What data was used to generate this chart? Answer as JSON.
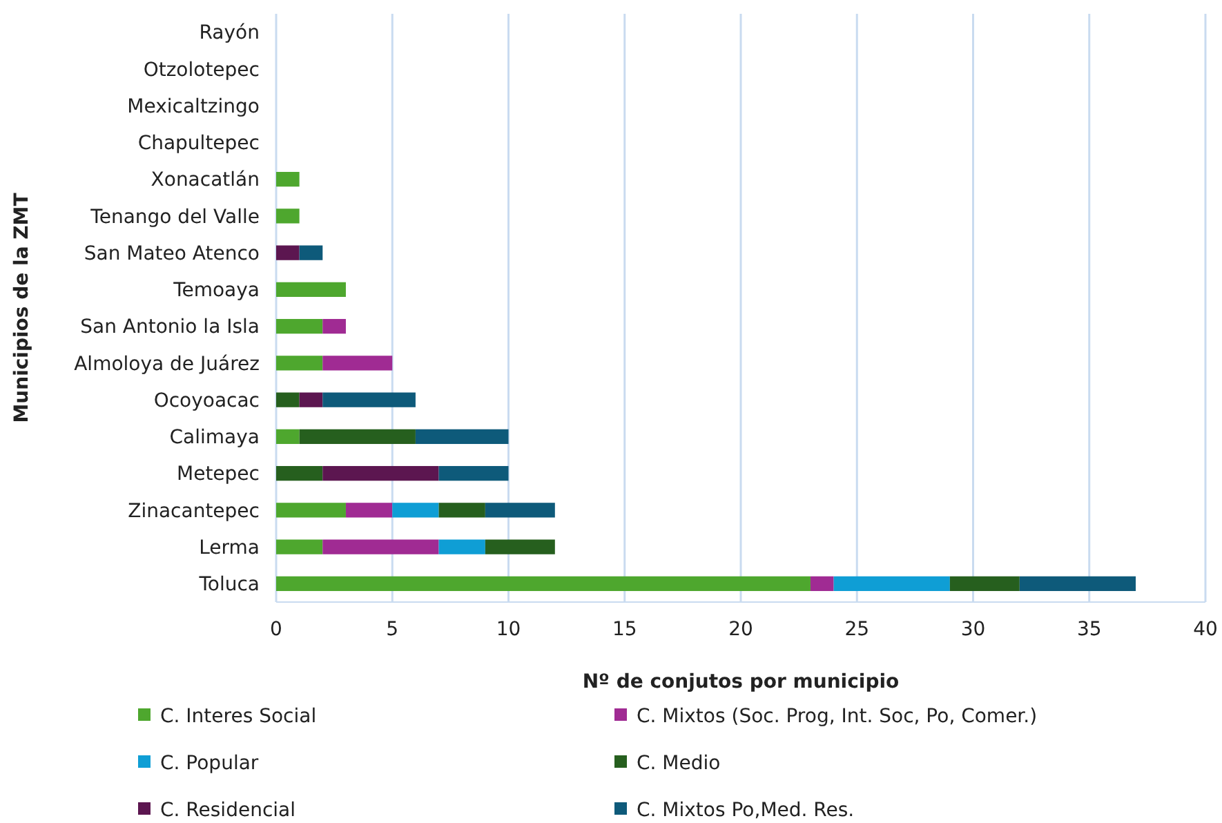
{
  "chart_data": {
    "type": "bar",
    "orientation": "horizontal",
    "stacked": true,
    "xlabel": "Nº de conjutos por municipio",
    "ylabel": "Municipios de la ZMT",
    "categories": [
      "Rayón",
      "Otzolotepec",
      "Mexicaltzingo",
      "Chapultepec",
      "Xonacatlán",
      "Tenango del Valle",
      "San Mateo Atenco",
      "Temoaya",
      "San Antonio la Isla",
      "Almoloya de Juárez",
      "Ocoyoacac",
      "Calimaya",
      "Metepec",
      "Zinacantepec",
      "Lerma",
      "Toluca"
    ],
    "series": [
      {
        "name": "C. Interes Social",
        "color": "#4ea72e",
        "values": [
          0,
          0,
          0,
          0,
          1,
          1,
          0,
          3,
          2,
          2,
          0,
          1,
          0,
          3,
          2,
          23
        ]
      },
      {
        "name": "C. Mixtos (Soc. Prog, Int. Soc, Po, Comer.)",
        "color": "#a02b93",
        "values": [
          0,
          0,
          0,
          0,
          0,
          0,
          0,
          0,
          1,
          3,
          0,
          0,
          0,
          2,
          5,
          1
        ]
      },
      {
        "name": "C. Popular",
        "color": "#0f9ed5",
        "values": [
          0,
          0,
          0,
          0,
          0,
          0,
          0,
          0,
          0,
          0,
          0,
          0,
          0,
          2,
          2,
          5
        ]
      },
      {
        "name": "C. Medio",
        "color": "#265f1e",
        "values": [
          0,
          0,
          0,
          0,
          0,
          0,
          0,
          0,
          0,
          0,
          1,
          5,
          2,
          2,
          3,
          3
        ]
      },
      {
        "name": "C. Residencial",
        "color": "#5c1650",
        "values": [
          0,
          0,
          0,
          0,
          0,
          0,
          1,
          0,
          0,
          0,
          1,
          0,
          5,
          0,
          0,
          0
        ]
      },
      {
        "name": "C. Mixtos Po,Med. Res.",
        "color": "#0e5a7a",
        "values": [
          0,
          0,
          0,
          0,
          0,
          0,
          1,
          0,
          0,
          0,
          4,
          4,
          3,
          3,
          0,
          5
        ]
      }
    ],
    "xlim": [
      0,
      40
    ],
    "xticks": [
      0,
      5,
      10,
      15,
      20,
      25,
      30,
      35,
      40
    ],
    "grid": "x",
    "legend": "bottom"
  }
}
